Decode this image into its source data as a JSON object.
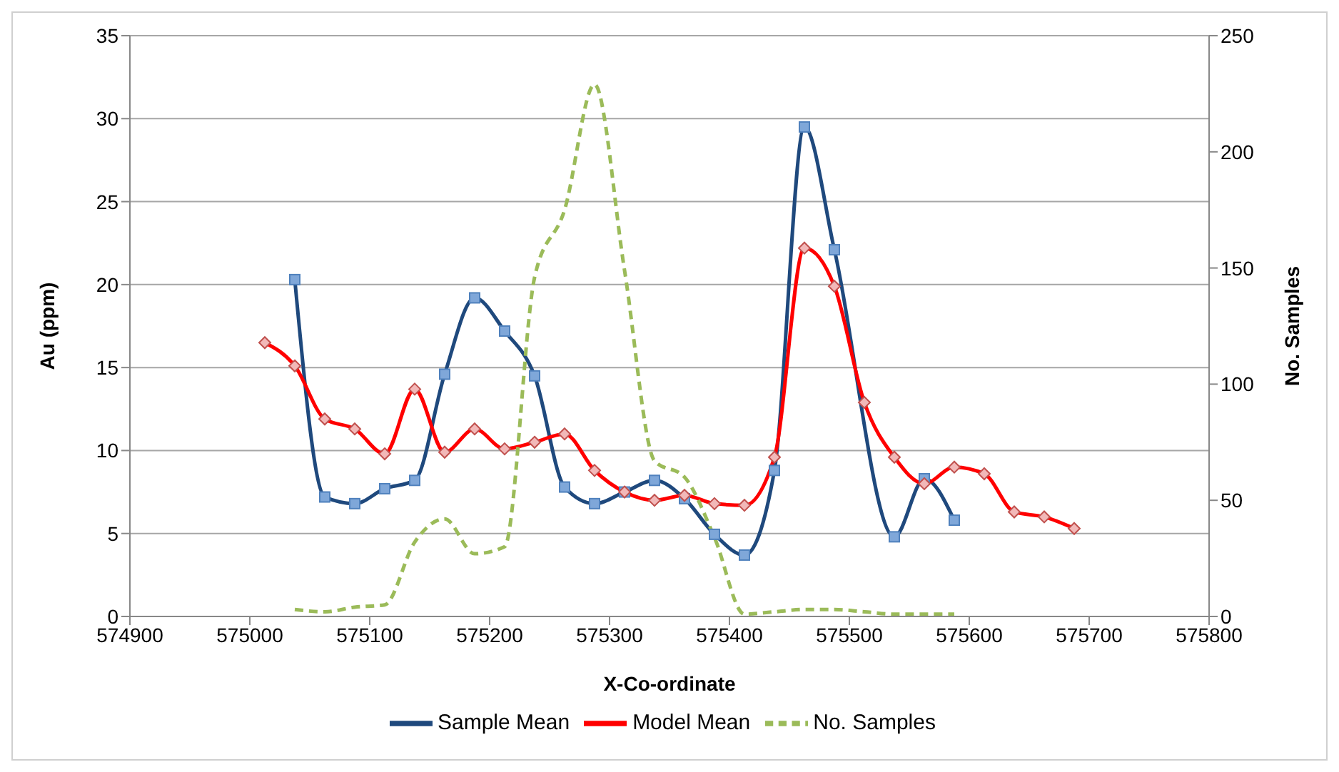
{
  "chart_data": {
    "type": "line",
    "xlabel": "X-Co-ordinate",
    "ylabel": "Au (ppm)",
    "y2label": "No. Samples",
    "xlim": [
      574900,
      575800
    ],
    "xticks": [
      574900,
      575000,
      575100,
      575200,
      575300,
      575400,
      575500,
      575600,
      575700,
      575800
    ],
    "ylim": [
      0,
      35
    ],
    "yticks": [
      0,
      5,
      10,
      15,
      20,
      25,
      30,
      35
    ],
    "y2lim": [
      0,
      250
    ],
    "y2ticks": [
      0,
      50,
      100,
      150,
      200,
      250
    ],
    "grid": "y",
    "legend": "bottom",
    "series": [
      {
        "name": "Sample Mean",
        "color": "#1f497d",
        "marker": "square",
        "line_style": "solid",
        "x": [
          575037.5,
          575062.5,
          575087.5,
          575112.5,
          575137.5,
          575162.5,
          575187.5,
          575212.5,
          575237.5,
          575262.5,
          575287.5,
          575312.5,
          575337.5,
          575362.5,
          575387.5,
          575412.5,
          575437.5,
          575462.5,
          575487.5,
          575537.5,
          575562.5,
          575587.5
        ],
        "values": [
          20.3,
          7.2,
          6.8,
          7.7,
          8.2,
          14.6,
          19.2,
          17.2,
          14.5,
          7.8,
          6.8,
          7.5,
          8.2,
          7.1,
          4.95,
          3.7,
          8.8,
          29.5,
          22.1,
          4.8,
          8.3,
          5.8
        ]
      },
      {
        "name": "Model Mean",
        "color": "#ff0000",
        "marker": "diamond",
        "line_style": "solid",
        "x": [
          575012.5,
          575037.5,
          575062.5,
          575087.5,
          575112.5,
          575137.5,
          575162.5,
          575187.5,
          575212.5,
          575237.5,
          575262.5,
          575287.5,
          575312.5,
          575337.5,
          575362.5,
          575387.5,
          575412.5,
          575437.5,
          575462.5,
          575487.5,
          575512.5,
          575537.5,
          575562.5,
          575587.5,
          575612.5,
          575637.5,
          575662.5,
          575687.5
        ],
        "values": [
          16.5,
          15.1,
          11.9,
          11.3,
          9.8,
          13.7,
          9.9,
          11.3,
          10.1,
          10.5,
          11.0,
          8.8,
          7.5,
          7.0,
          7.3,
          6.8,
          6.7,
          9.6,
          22.2,
          19.9,
          12.9,
          9.6,
          8.0,
          9.0,
          8.6,
          6.3,
          6.0,
          5.3
        ]
      },
      {
        "name": "No. Samples",
        "color": "#9bbb59",
        "marker": "none",
        "line_style": "dashed",
        "axis": "y2",
        "x": [
          575037.5,
          575062.5,
          575087.5,
          575112.5,
          575137.5,
          575162.5,
          575187.5,
          575212.5,
          575237.5,
          575262.5,
          575287.5,
          575312.5,
          575337.5,
          575362.5,
          575387.5,
          575412.5,
          575437.5,
          575462.5,
          575487.5,
          575512.5,
          575537.5,
          575562.5,
          575587.5
        ],
        "values": [
          3,
          2,
          4,
          5,
          32,
          42,
          27,
          30,
          146,
          175,
          229,
          149,
          67,
          60,
          34,
          1,
          2,
          3,
          3,
          2,
          1,
          1,
          1
        ]
      }
    ]
  }
}
